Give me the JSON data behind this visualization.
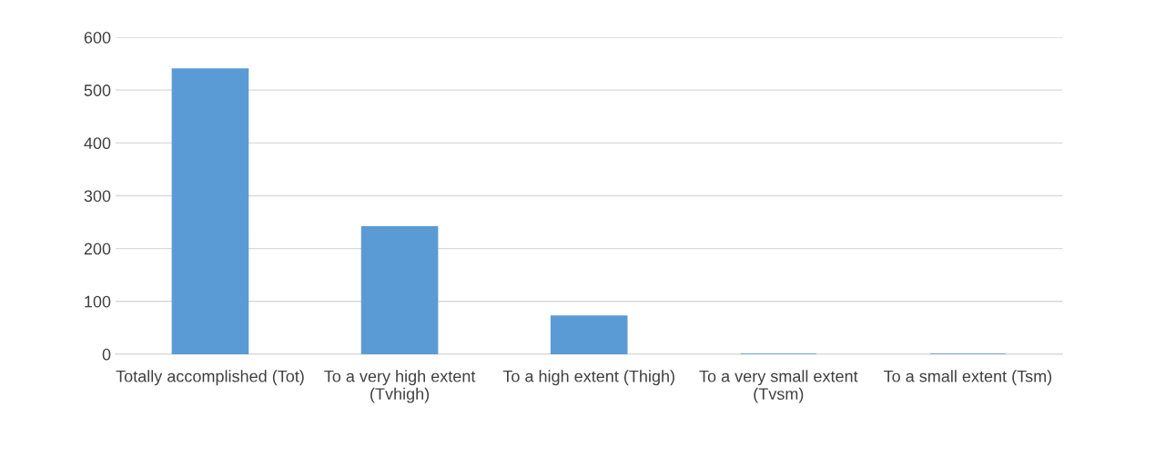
{
  "chart_data": {
    "type": "bar",
    "categories": [
      "Totally accomplished (Tot)",
      "To a very high extent (Tvhigh)",
      "To a high extent (Thigh)",
      "To a very small extent (Tvsm)",
      "To a small extent (Tsm)"
    ],
    "values": [
      540,
      241,
      72,
      0,
      0
    ],
    "color": "#5b9bd5",
    "ylim": [
      0,
      600
    ],
    "yticks": [
      0,
      100,
      200,
      300,
      400,
      500,
      600
    ],
    "grid": "y"
  }
}
